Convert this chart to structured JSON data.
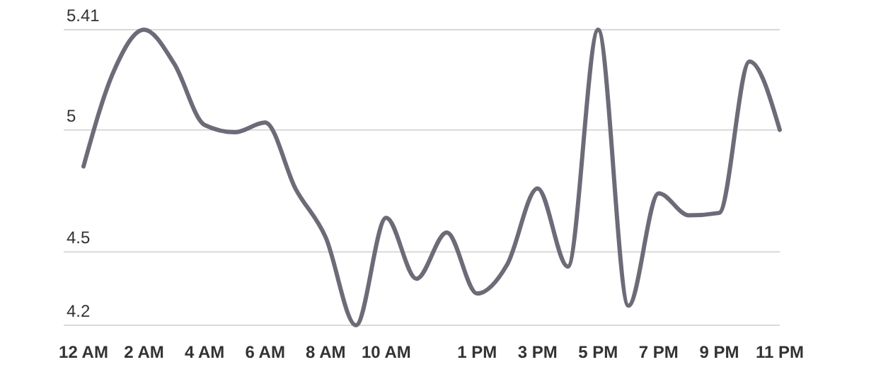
{
  "chart_data": {
    "type": "line",
    "categories": [
      "12 AM",
      null,
      "2 AM",
      null,
      "4 AM",
      null,
      "6 AM",
      null,
      "8 AM",
      null,
      "10 AM",
      null,
      null,
      "1 PM",
      null,
      "3 PM",
      null,
      "5 PM",
      null,
      "7 PM",
      null,
      "9 PM",
      null,
      "11 PM"
    ],
    "series": [
      {
        "color": "#6e6b78",
        "values": [
          4.85,
          5.24,
          5.41,
          5.27,
          5.02,
          4.99,
          5.03,
          4.76,
          4.56,
          4.2,
          4.64,
          4.39,
          4.58,
          4.33,
          4.45,
          4.76,
          4.44,
          5.41,
          4.28,
          4.74,
          4.65,
          4.66,
          5.28,
          5.0
        ]
      }
    ],
    "ylim": [
      4.2,
      5.41
    ],
    "yticks": [
      5.41,
      5,
      4.5,
      4.2
    ],
    "grid": "y",
    "marker": "none",
    "line_style": "solid"
  }
}
